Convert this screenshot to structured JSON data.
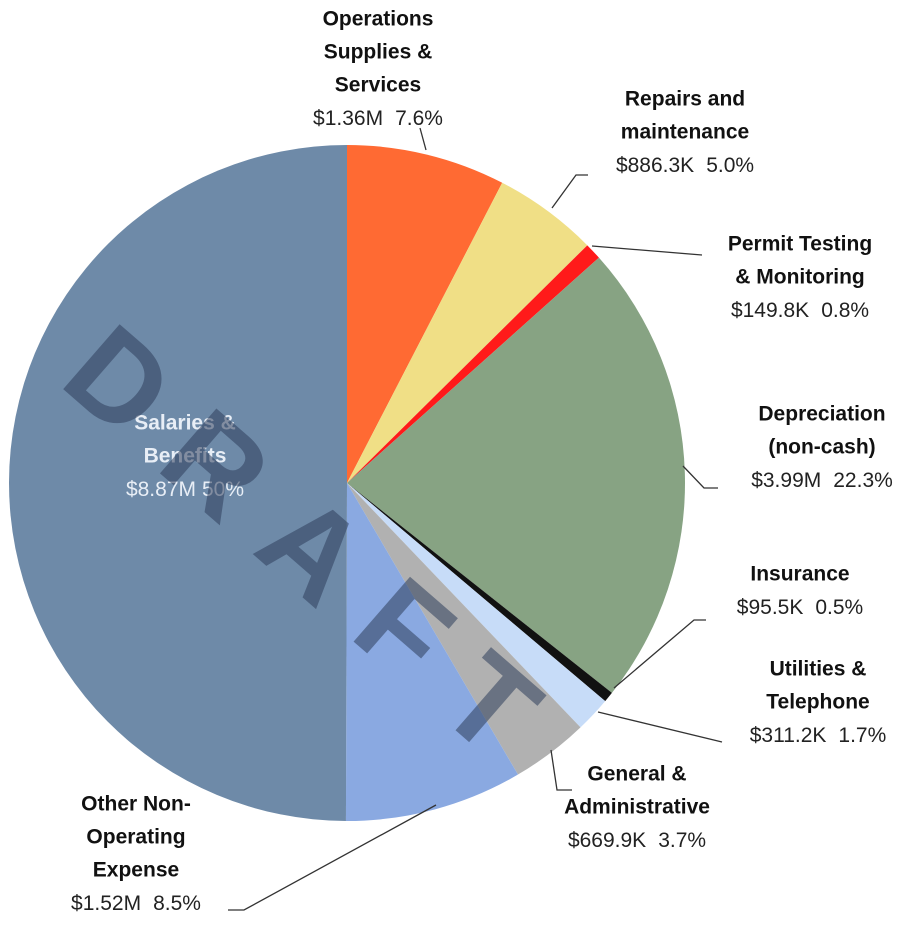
{
  "chart_data": {
    "type": "pie",
    "watermark": "DRAFT",
    "categories": [
      [
        "Operations",
        "Supplies &",
        "Services"
      ],
      [
        "Repairs and",
        "maintenance"
      ],
      [
        "Permit Testing",
        "& Monitoring"
      ],
      [
        "Depreciation",
        "(non-cash)"
      ],
      [
        "Insurance"
      ],
      [
        "Utilities &",
        "Telephone"
      ],
      [
        "General &",
        "Administrative"
      ],
      [
        "Other Non-",
        "Operating",
        "Expense"
      ],
      [
        "Salaries &",
        "Benefits"
      ]
    ],
    "values": [
      7.6,
      5.0,
      0.8,
      22.3,
      0.5,
      1.7,
      3.7,
      8.5,
      50
    ],
    "value_labels": [
      "7.6%",
      "5.0%",
      "0.8%",
      "22.3%",
      "0.5%",
      "1.7%",
      "3.7%",
      "8.5%",
      "50%"
    ],
    "amounts": [
      1360000,
      886300,
      149800,
      3990000,
      95500,
      311200,
      669900,
      1520000,
      8870000
    ],
    "amount_labels": [
      "$1.36M",
      "$886.3K",
      "$149.8K",
      "$3.99M",
      "$95.5K",
      "$311.2K",
      "$669.9K",
      "$1.52M",
      "$8.87M"
    ],
    "colors": [
      "#ff6a33",
      "#f0df86",
      "#ff1a1a",
      "#87a383",
      "#111111",
      "#c7dcf8",
      "#b1b1b1",
      "#8aa9e1",
      "#6e8aa8"
    ]
  }
}
